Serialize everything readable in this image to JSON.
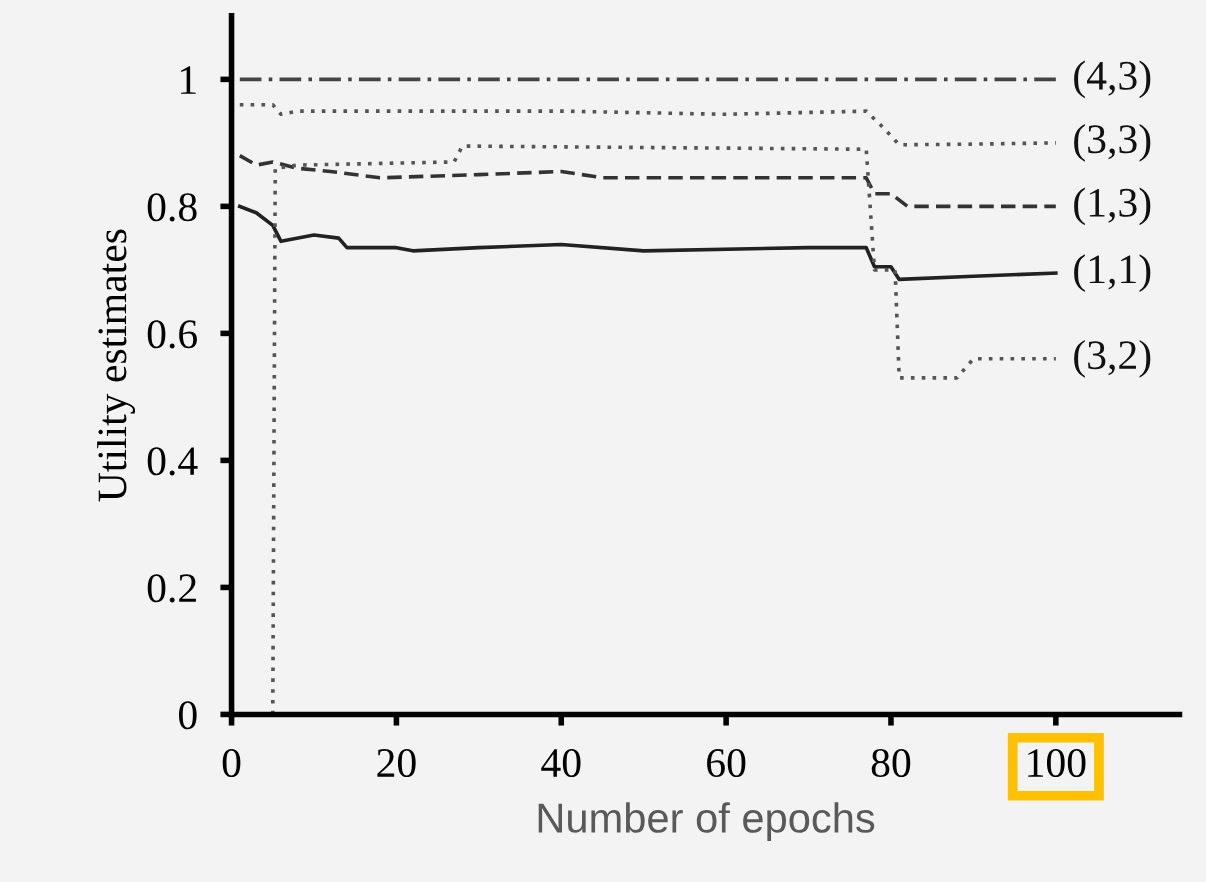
{
  "chart_data": {
    "type": "line",
    "xlabel": "Number of epochs",
    "ylabel": "Utility estimates",
    "xlim": [
      0,
      115
    ],
    "ylim": [
      0,
      1.1
    ],
    "xticks": [
      0,
      20,
      40,
      60,
      80,
      100
    ],
    "yticks": [
      0,
      0.2,
      0.4,
      0.6,
      0.8,
      1
    ],
    "grid": false,
    "legend": false,
    "series": [
      {
        "name": "(4,3)",
        "color": "#444444",
        "line_style": "dashdot",
        "x": [
          1,
          100
        ],
        "values": [
          1,
          1
        ]
      },
      {
        "name": "(3,3)",
        "color": "#555555",
        "line_style": "dotted",
        "x": [
          1,
          5,
          6,
          8,
          20,
          40,
          60,
          77,
          79,
          81,
          90,
          100
        ],
        "values": [
          0.96,
          0.96,
          0.945,
          0.95,
          0.95,
          0.95,
          0.945,
          0.95,
          0.925,
          0.897,
          0.898,
          0.9
        ]
      },
      {
        "name": "(1,3)",
        "color": "#333333",
        "line_style": "dashed",
        "x": [
          1,
          3,
          5,
          8,
          12,
          18,
          30,
          40,
          45,
          77,
          78,
          80,
          82,
          100
        ],
        "values": [
          0.88,
          0.865,
          0.87,
          0.86,
          0.855,
          0.845,
          0.85,
          0.855,
          0.845,
          0.845,
          0.82,
          0.82,
          0.8,
          0.8
        ]
      },
      {
        "name": "(1,1)",
        "color": "#222222",
        "line_style": "solid",
        "x": [
          1,
          3,
          5,
          6,
          10,
          13,
          14,
          20,
          22,
          30,
          40,
          50,
          70,
          77,
          78,
          80,
          81,
          90,
          100
        ],
        "values": [
          0.8,
          0.79,
          0.77,
          0.745,
          0.755,
          0.75,
          0.735,
          0.735,
          0.73,
          0.735,
          0.74,
          0.73,
          0.735,
          0.735,
          0.705,
          0.705,
          0.685,
          0.69,
          0.695
        ]
      },
      {
        "name": "(3,2)",
        "color": "#555555",
        "line_style": "dotted",
        "x": [
          5,
          5.3,
          8,
          27,
          28,
          77,
          78,
          80.5,
          81,
          88,
          90,
          100
        ],
        "values": [
          0,
          0.86,
          0.865,
          0.87,
          0.895,
          0.89,
          0.7,
          0.7,
          0.53,
          0.53,
          0.56,
          0.56
        ]
      }
    ]
  }
}
